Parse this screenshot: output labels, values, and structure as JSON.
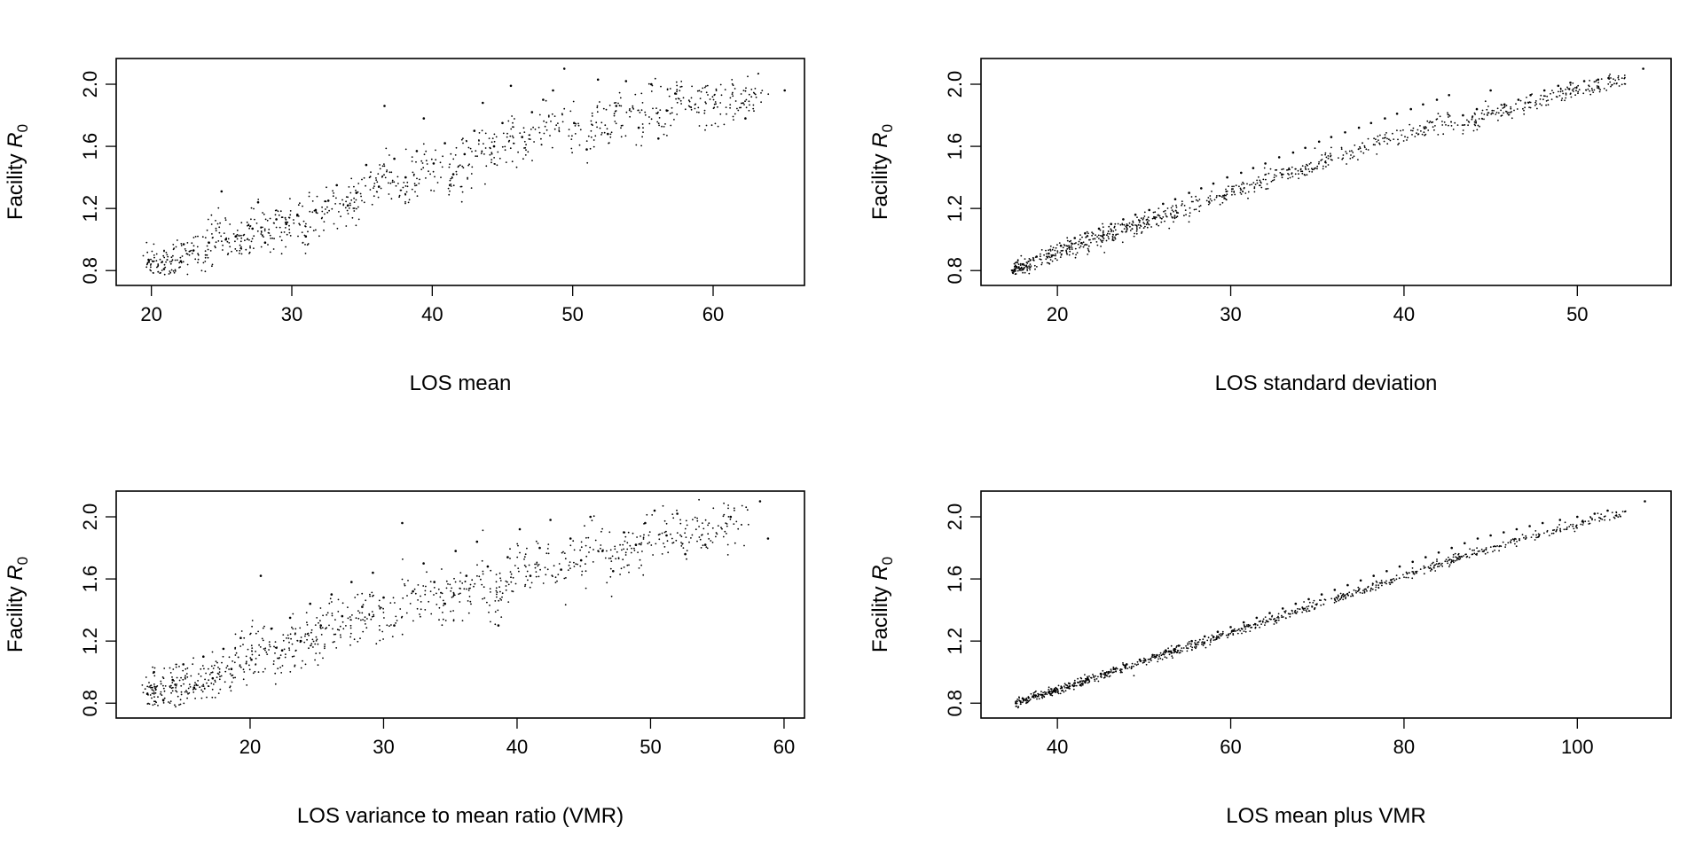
{
  "chart_data": [
    {
      "type": "scatter",
      "xlabel": "LOS mean",
      "ylabel_text": "Facility ",
      "ylabel_symbol": "R",
      "ylabel_subscript": "0",
      "xlim": [
        18,
        66
      ],
      "ylim": [
        0.75,
        2.12
      ],
      "xticks": [
        20,
        30,
        40,
        50,
        60
      ],
      "yticks": [
        0.8,
        1.2,
        1.6,
        2.0
      ],
      "ytick_labels": [
        "0.8",
        "1.2",
        "1.6",
        "2.0"
      ],
      "spread": 0.5,
      "points": [
        [
          19.8,
          0.87
        ],
        [
          20.9,
          0.81
        ],
        [
          22.1,
          0.86
        ],
        [
          22.3,
          0.97
        ],
        [
          23.0,
          0.93
        ],
        [
          24.1,
          0.98
        ],
        [
          25.0,
          1.31
        ],
        [
          25.3,
          1.0
        ],
        [
          26.0,
          1.02
        ],
        [
          27.2,
          1.07
        ],
        [
          27.6,
          1.24
        ],
        [
          28.1,
          0.98
        ],
        [
          28.9,
          1.13
        ],
        [
          29.6,
          1.1
        ],
        [
          30.4,
          1.16
        ],
        [
          31.0,
          1.02
        ],
        [
          31.7,
          1.19
        ],
        [
          32.6,
          1.25
        ],
        [
          33.2,
          1.35
        ],
        [
          34.0,
          1.22
        ],
        [
          34.6,
          1.3
        ],
        [
          35.3,
          1.48
        ],
        [
          36.2,
          1.34
        ],
        [
          36.6,
          1.86
        ],
        [
          37.3,
          1.52
        ],
        [
          38.1,
          1.4
        ],
        [
          38.9,
          1.57
        ],
        [
          39.4,
          1.78
        ],
        [
          40.1,
          1.49
        ],
        [
          40.9,
          1.62
        ],
        [
          41.5,
          1.42
        ],
        [
          42.3,
          1.55
        ],
        [
          43.0,
          1.7
        ],
        [
          43.6,
          1.88
        ],
        [
          44.4,
          1.6
        ],
        [
          45.0,
          1.75
        ],
        [
          45.6,
          1.99
        ],
        [
          46.4,
          1.66
        ],
        [
          47.1,
          1.82
        ],
        [
          47.9,
          1.9
        ],
        [
          48.6,
          1.96
        ],
        [
          49.4,
          2.1
        ],
        [
          50.1,
          1.75
        ],
        [
          51.0,
          1.58
        ],
        [
          51.8,
          2.03
        ],
        [
          52.5,
          1.68
        ],
        [
          53.1,
          1.86
        ],
        [
          53.8,
          2.02
        ],
        [
          54.7,
          1.72
        ],
        [
          55.6,
          2.0
        ],
        [
          56.1,
          1.65
        ],
        [
          56.7,
          1.83
        ],
        [
          57.3,
          1.94
        ],
        [
          62.3,
          1.78
        ],
        [
          65.1,
          1.96
        ]
      ]
    },
    {
      "type": "scatter",
      "xlabel": "LOS standard deviation",
      "ylabel_text": "Facility ",
      "ylabel_symbol": "R",
      "ylabel_subscript": "0",
      "xlim": [
        16,
        55
      ],
      "ylim": [
        0.75,
        2.12
      ],
      "xticks": [
        20,
        30,
        40,
        50
      ],
      "yticks": [
        0.8,
        1.2,
        1.6,
        2.0
      ],
      "ytick_labels": [
        "0.8",
        "1.2",
        "1.6",
        "2.0"
      ],
      "spread": 0.2,
      "points": [
        [
          17.4,
          0.8
        ],
        [
          18.0,
          0.84
        ],
        [
          18.8,
          0.89
        ],
        [
          19.5,
          0.91
        ],
        [
          20.2,
          0.96
        ],
        [
          21.0,
          1.01
        ],
        [
          21.6,
          1.04
        ],
        [
          22.4,
          1.07
        ],
        [
          23.1,
          1.1
        ],
        [
          23.8,
          1.13
        ],
        [
          24.5,
          1.16
        ],
        [
          25.3,
          1.19
        ],
        [
          26.1,
          1.23
        ],
        [
          26.8,
          1.26
        ],
        [
          27.6,
          1.3
        ],
        [
          28.3,
          1.33
        ],
        [
          29.0,
          1.36
        ],
        [
          29.8,
          1.4
        ],
        [
          30.6,
          1.43
        ],
        [
          31.3,
          1.46
        ],
        [
          32.0,
          1.49
        ],
        [
          32.8,
          1.53
        ],
        [
          33.6,
          1.56
        ],
        [
          34.3,
          1.59
        ],
        [
          35.1,
          1.63
        ],
        [
          35.8,
          1.66
        ],
        [
          36.6,
          1.69
        ],
        [
          37.4,
          1.72
        ],
        [
          38.1,
          1.75
        ],
        [
          38.9,
          1.78
        ],
        [
          39.6,
          1.81
        ],
        [
          40.4,
          1.84
        ],
        [
          41.1,
          1.87
        ],
        [
          41.9,
          1.9
        ],
        [
          42.6,
          1.93
        ],
        [
          43.4,
          1.8
        ],
        [
          44.2,
          1.84
        ],
        [
          45.0,
          1.96
        ],
        [
          45.8,
          1.87
        ],
        [
          46.6,
          1.9
        ],
        [
          47.3,
          1.93
        ],
        [
          48.1,
          1.96
        ],
        [
          48.9,
          1.99
        ],
        [
          49.6,
          2.01
        ],
        [
          50.4,
          2.02
        ],
        [
          51.2,
          2.03
        ],
        [
          51.8,
          2.04
        ],
        [
          53.8,
          2.1
        ]
      ]
    },
    {
      "type": "scatter",
      "xlabel": "LOS variance to mean ratio (VMR)",
      "ylabel_text": "Facility ",
      "ylabel_symbol": "R",
      "ylabel_subscript": "0",
      "xlim": [
        10.5,
        61
      ],
      "ylim": [
        0.75,
        2.12
      ],
      "xticks": [
        20,
        30,
        40,
        50,
        60
      ],
      "yticks": [
        0.8,
        1.2,
        1.6,
        2.0
      ],
      "ytick_labels": [
        "0.8",
        "1.2",
        "1.6",
        "2.0"
      ],
      "spread": 0.55,
      "points": [
        [
          12.3,
          0.86
        ],
        [
          12.8,
          1.0
        ],
        [
          13.5,
          0.82
        ],
        [
          14.2,
          0.95
        ],
        [
          15.0,
          1.05
        ],
        [
          15.8,
          0.9
        ],
        [
          16.5,
          1.1
        ],
        [
          17.2,
          0.96
        ],
        [
          18.0,
          1.15
        ],
        [
          18.6,
          1.02
        ],
        [
          19.3,
          1.22
        ],
        [
          20.1,
          1.08
        ],
        [
          20.8,
          1.62
        ],
        [
          21.6,
          1.28
        ],
        [
          22.4,
          1.14
        ],
        [
          23.0,
          1.35
        ],
        [
          23.8,
          1.2
        ],
        [
          24.5,
          1.44
        ],
        [
          25.3,
          1.3
        ],
        [
          26.1,
          1.5
        ],
        [
          26.9,
          1.36
        ],
        [
          27.6,
          1.58
        ],
        [
          28.4,
          1.42
        ],
        [
          29.2,
          1.64
        ],
        [
          30.0,
          1.48
        ],
        [
          30.8,
          1.3
        ],
        [
          31.4,
          1.96
        ],
        [
          32.2,
          1.52
        ],
        [
          33.0,
          1.7
        ],
        [
          33.8,
          1.58
        ],
        [
          34.6,
          1.44
        ],
        [
          35.4,
          1.78
        ],
        [
          36.2,
          1.62
        ],
        [
          37.0,
          1.84
        ],
        [
          37.8,
          1.68
        ],
        [
          38.6,
          1.3
        ],
        [
          39.3,
          1.74
        ],
        [
          40.2,
          1.92
        ],
        [
          41.0,
          1.62
        ],
        [
          41.7,
          1.8
        ],
        [
          42.5,
          1.98
        ],
        [
          43.3,
          1.66
        ],
        [
          44.0,
          1.86
        ],
        [
          44.8,
          1.72
        ],
        [
          45.5,
          2.0
        ],
        [
          46.4,
          1.78
        ],
        [
          47.2,
          1.65
        ],
        [
          48.0,
          1.9
        ],
        [
          48.9,
          1.82
        ],
        [
          49.6,
          1.96
        ],
        [
          50.3,
          2.04
        ],
        [
          51.2,
          1.88
        ],
        [
          52.0,
          2.02
        ],
        [
          52.6,
          1.76
        ],
        [
          54.1,
          1.82
        ],
        [
          56.0,
          2.0
        ],
        [
          58.2,
          2.1
        ],
        [
          58.8,
          1.86
        ]
      ]
    },
    {
      "type": "scatter",
      "xlabel": "LOS mean plus VMR",
      "ylabel_text": "Facility ",
      "ylabel_symbol": "R",
      "ylabel_subscript": "0",
      "xlim": [
        32,
        110
      ],
      "ylim": [
        0.75,
        2.12
      ],
      "xticks": [
        40,
        60,
        80,
        100
      ],
      "yticks": [
        0.8,
        1.2,
        1.6,
        2.0
      ],
      "ytick_labels": [
        "0.8",
        "1.2",
        "1.6",
        "2.0"
      ],
      "spread": 0.1,
      "points": [
        [
          35.2,
          0.8
        ],
        [
          37.5,
          0.85
        ],
        [
          39.0,
          0.87
        ],
        [
          40.5,
          0.9
        ],
        [
          42.0,
          0.93
        ],
        [
          43.5,
          0.96
        ],
        [
          45.0,
          0.99
        ],
        [
          46.5,
          1.02
        ],
        [
          48.0,
          1.05
        ],
        [
          49.5,
          1.08
        ],
        [
          51.0,
          1.11
        ],
        [
          52.5,
          1.14
        ],
        [
          54.0,
          1.17
        ],
        [
          55.5,
          1.2
        ],
        [
          57.0,
          1.23
        ],
        [
          58.5,
          1.26
        ],
        [
          60.0,
          1.29
        ],
        [
          61.5,
          1.32
        ],
        [
          63.0,
          1.35
        ],
        [
          64.5,
          1.38
        ],
        [
          66.0,
          1.41
        ],
        [
          67.5,
          1.44
        ],
        [
          69.0,
          1.47
        ],
        [
          70.5,
          1.5
        ],
        [
          72.0,
          1.53
        ],
        [
          73.5,
          1.56
        ],
        [
          75.0,
          1.59
        ],
        [
          76.5,
          1.62
        ],
        [
          78.0,
          1.65
        ],
        [
          79.5,
          1.68
        ],
        [
          81.0,
          1.71
        ],
        [
          82.5,
          1.74
        ],
        [
          84.0,
          1.77
        ],
        [
          85.5,
          1.8
        ],
        [
          87.0,
          1.83
        ],
        [
          88.5,
          1.86
        ],
        [
          90.0,
          1.88
        ],
        [
          91.5,
          1.9
        ],
        [
          93.0,
          1.92
        ],
        [
          94.5,
          1.94
        ],
        [
          96.0,
          1.96
        ],
        [
          98.0,
          1.98
        ],
        [
          100.0,
          2.0
        ],
        [
          102.0,
          2.02
        ],
        [
          103.5,
          2.04
        ],
        [
          107.8,
          2.1
        ]
      ]
    }
  ]
}
